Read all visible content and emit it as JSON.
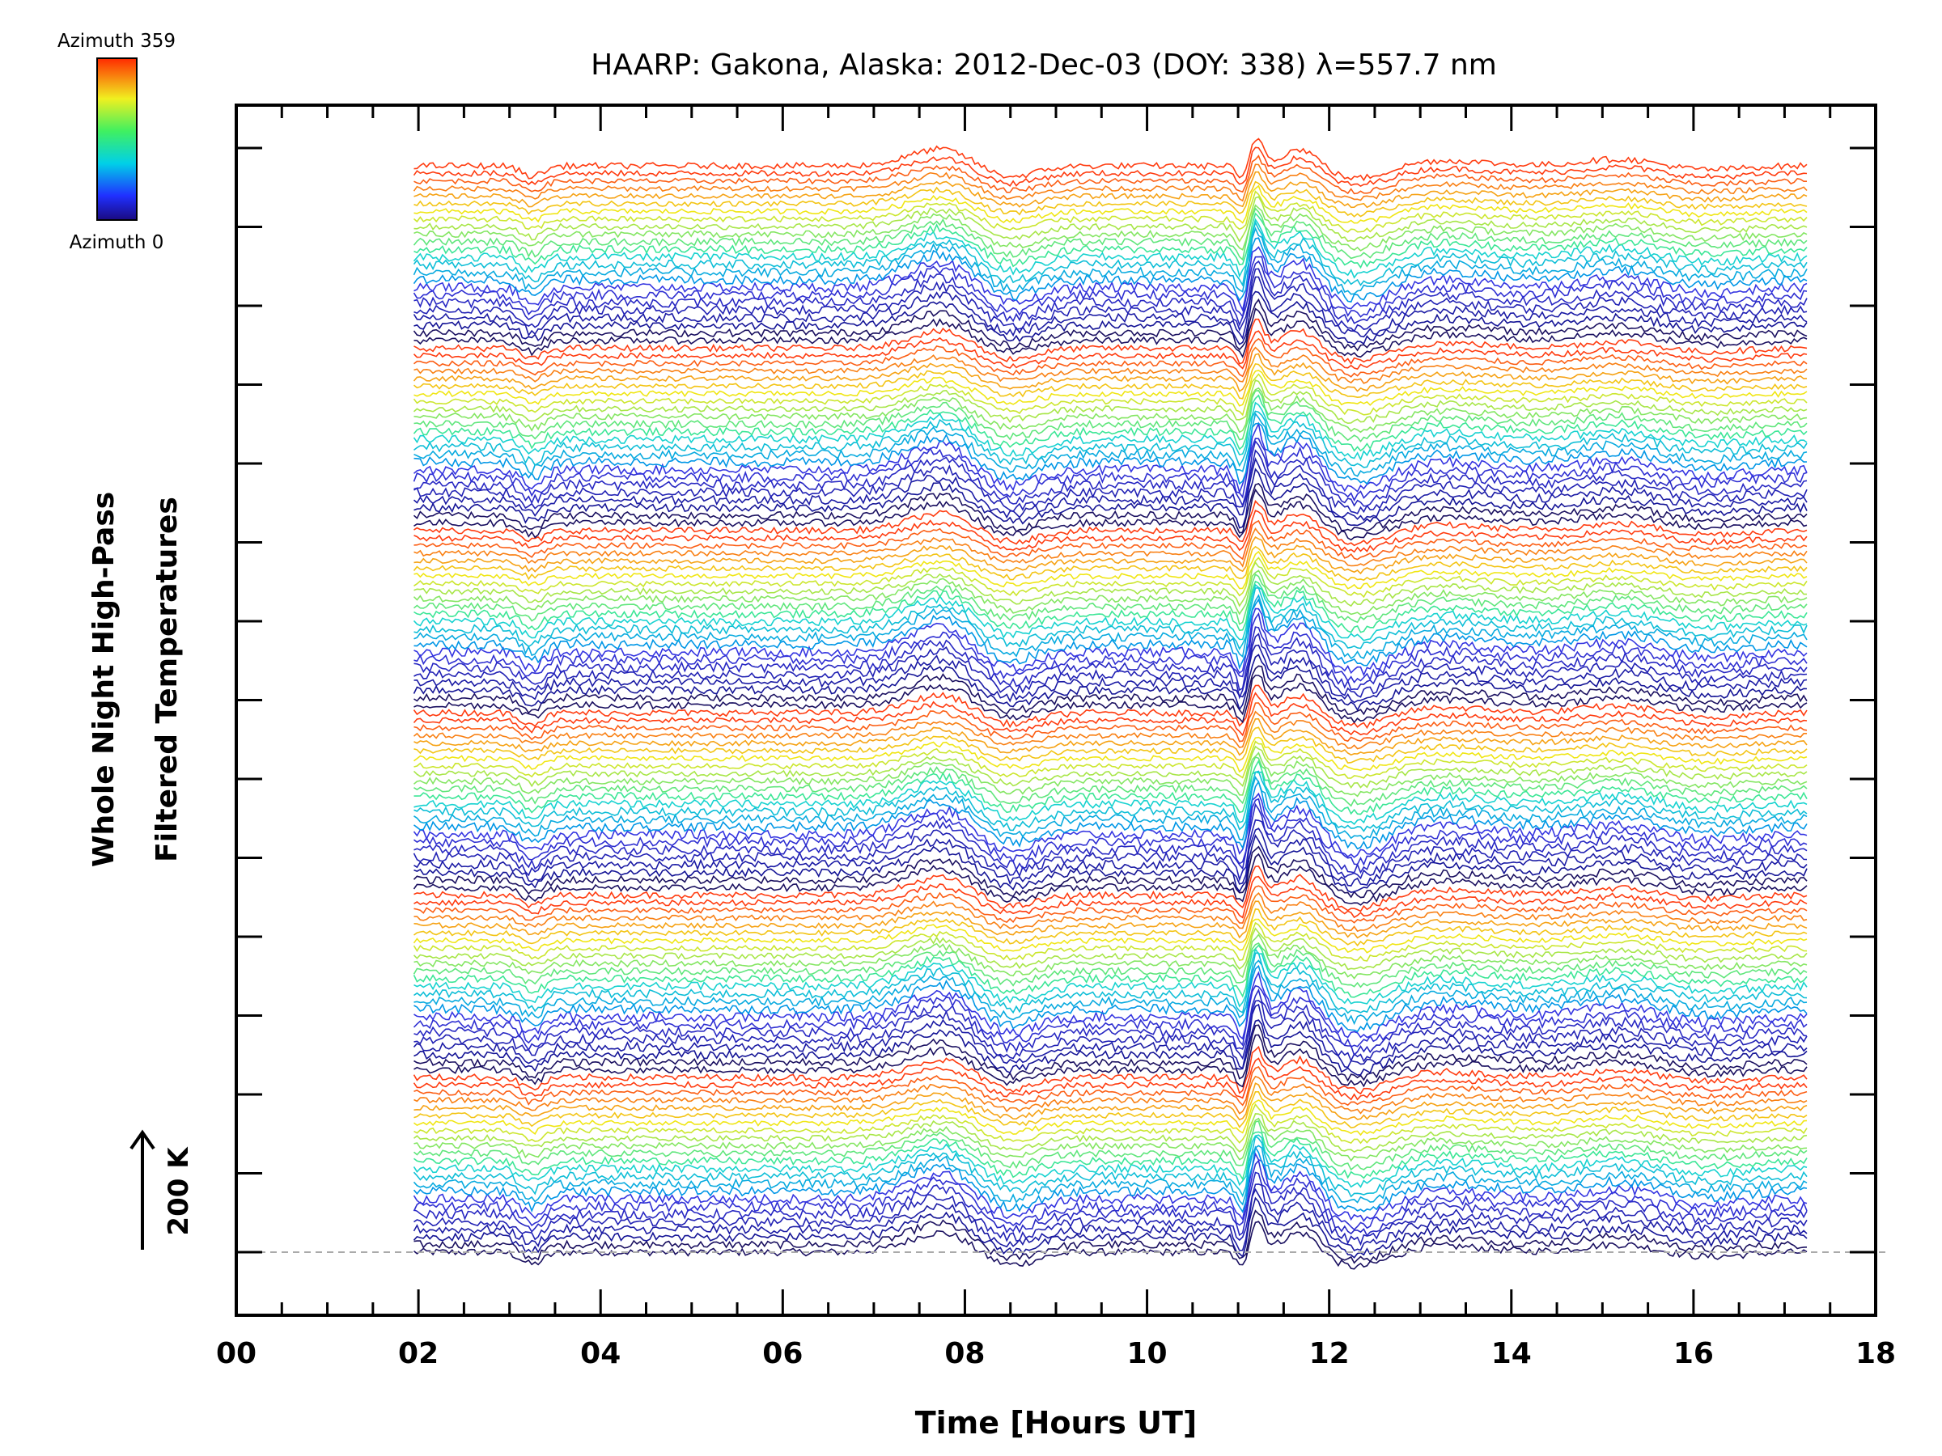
{
  "chart_data": {
    "type": "line",
    "title": "HAARP: Gakona,  Alaska: 2012-Dec-03 (DOY: 338) λ=557.7 nm",
    "xlabel": "Time [Hours UT]",
    "ylabel_line1": "Whole Night High-Pass",
    "ylabel_line2": "Filtered Temperatures",
    "xlim": [
      0,
      18
    ],
    "x_tick_labels": [
      "00",
      "02",
      "04",
      "06",
      "08",
      "10",
      "12",
      "14",
      "16",
      "18"
    ],
    "x_range_data": [
      1.95,
      17.25
    ],
    "y_scale_label": "200 K",
    "series_count": 144,
    "series_colorscale": "rainbow (blue → cyan → green → yellow → red) by azimuth",
    "colorbar": {
      "top_label": "Azimuth 359",
      "bottom_label": "Azimuth 0"
    },
    "grid": false,
    "baseline": "dashed grey zero line at bottom trace"
  }
}
